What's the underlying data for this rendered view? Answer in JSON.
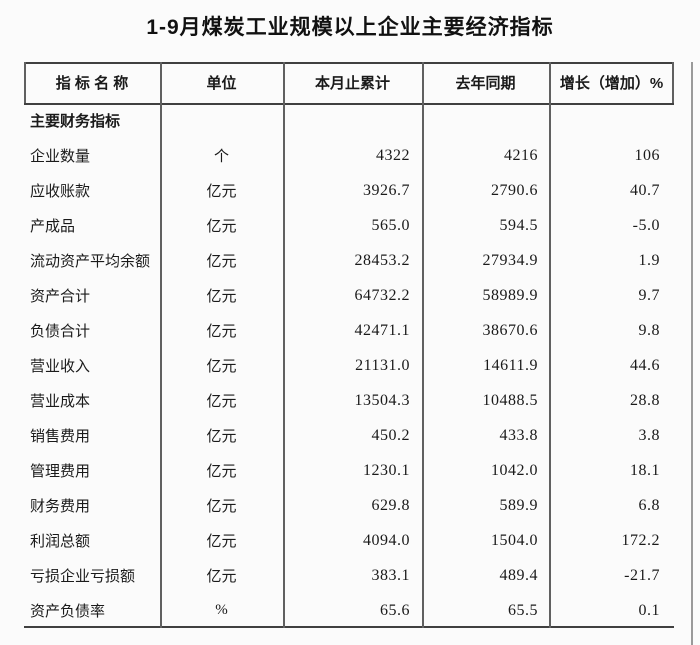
{
  "title": "1-9月煤炭工业规模以上企业主要经济指标",
  "colors": {
    "background": "#fbfbfb",
    "text": "#1a1a1a",
    "border_dark": "#404040",
    "border_gray": "#606060",
    "page_edge": "#9a9a9a"
  },
  "table": {
    "columns": [
      "指 标 名 称",
      "单位",
      "本月止累计",
      "去年同期",
      "增长（增加）%"
    ],
    "rows": [
      {
        "section": true,
        "name": "主要财务指标",
        "unit": "",
        "current": "",
        "last_year": "",
        "growth": ""
      },
      {
        "section": false,
        "name": "企业数量",
        "unit": "个",
        "current": "4322",
        "last_year": "4216",
        "growth": "106"
      },
      {
        "section": false,
        "name": "应收账款",
        "unit": "亿元",
        "current": "3926.7",
        "last_year": "2790.6",
        "growth": "40.7"
      },
      {
        "section": false,
        "name": "产成品",
        "unit": "亿元",
        "current": "565.0",
        "last_year": "594.5",
        "growth": "-5.0"
      },
      {
        "section": false,
        "name": "流动资产平均余额",
        "unit": "亿元",
        "current": "28453.2",
        "last_year": "27934.9",
        "growth": "1.9"
      },
      {
        "section": false,
        "name": "资产合计",
        "unit": "亿元",
        "current": "64732.2",
        "last_year": "58989.9",
        "growth": "9.7"
      },
      {
        "section": false,
        "name": "负债合计",
        "unit": "亿元",
        "current": "42471.1",
        "last_year": "38670.6",
        "growth": "9.8"
      },
      {
        "section": false,
        "name": "营业收入",
        "unit": "亿元",
        "current": "21131.0",
        "last_year": "14611.9",
        "growth": "44.6"
      },
      {
        "section": false,
        "name": "营业成本",
        "unit": "亿元",
        "current": "13504.3",
        "last_year": "10488.5",
        "growth": "28.8"
      },
      {
        "section": false,
        "name": "销售费用",
        "unit": "亿元",
        "current": "450.2",
        "last_year": "433.8",
        "growth": "3.8"
      },
      {
        "section": false,
        "name": "管理费用",
        "unit": "亿元",
        "current": "1230.1",
        "last_year": "1042.0",
        "growth": "18.1"
      },
      {
        "section": false,
        "name": "财务费用",
        "unit": "亿元",
        "current": "629.8",
        "last_year": "589.9",
        "growth": "6.8"
      },
      {
        "section": false,
        "name": "利润总额",
        "unit": "亿元",
        "current": "4094.0",
        "last_year": "1504.0",
        "growth": "172.2"
      },
      {
        "section": false,
        "name": "亏损企业亏损额",
        "unit": "亿元",
        "current": "383.1",
        "last_year": "489.4",
        "growth": "-21.7"
      },
      {
        "section": false,
        "name": "资产负债率",
        "unit": "%",
        "current": "65.6",
        "last_year": "65.5",
        "growth": "0.1"
      }
    ]
  }
}
